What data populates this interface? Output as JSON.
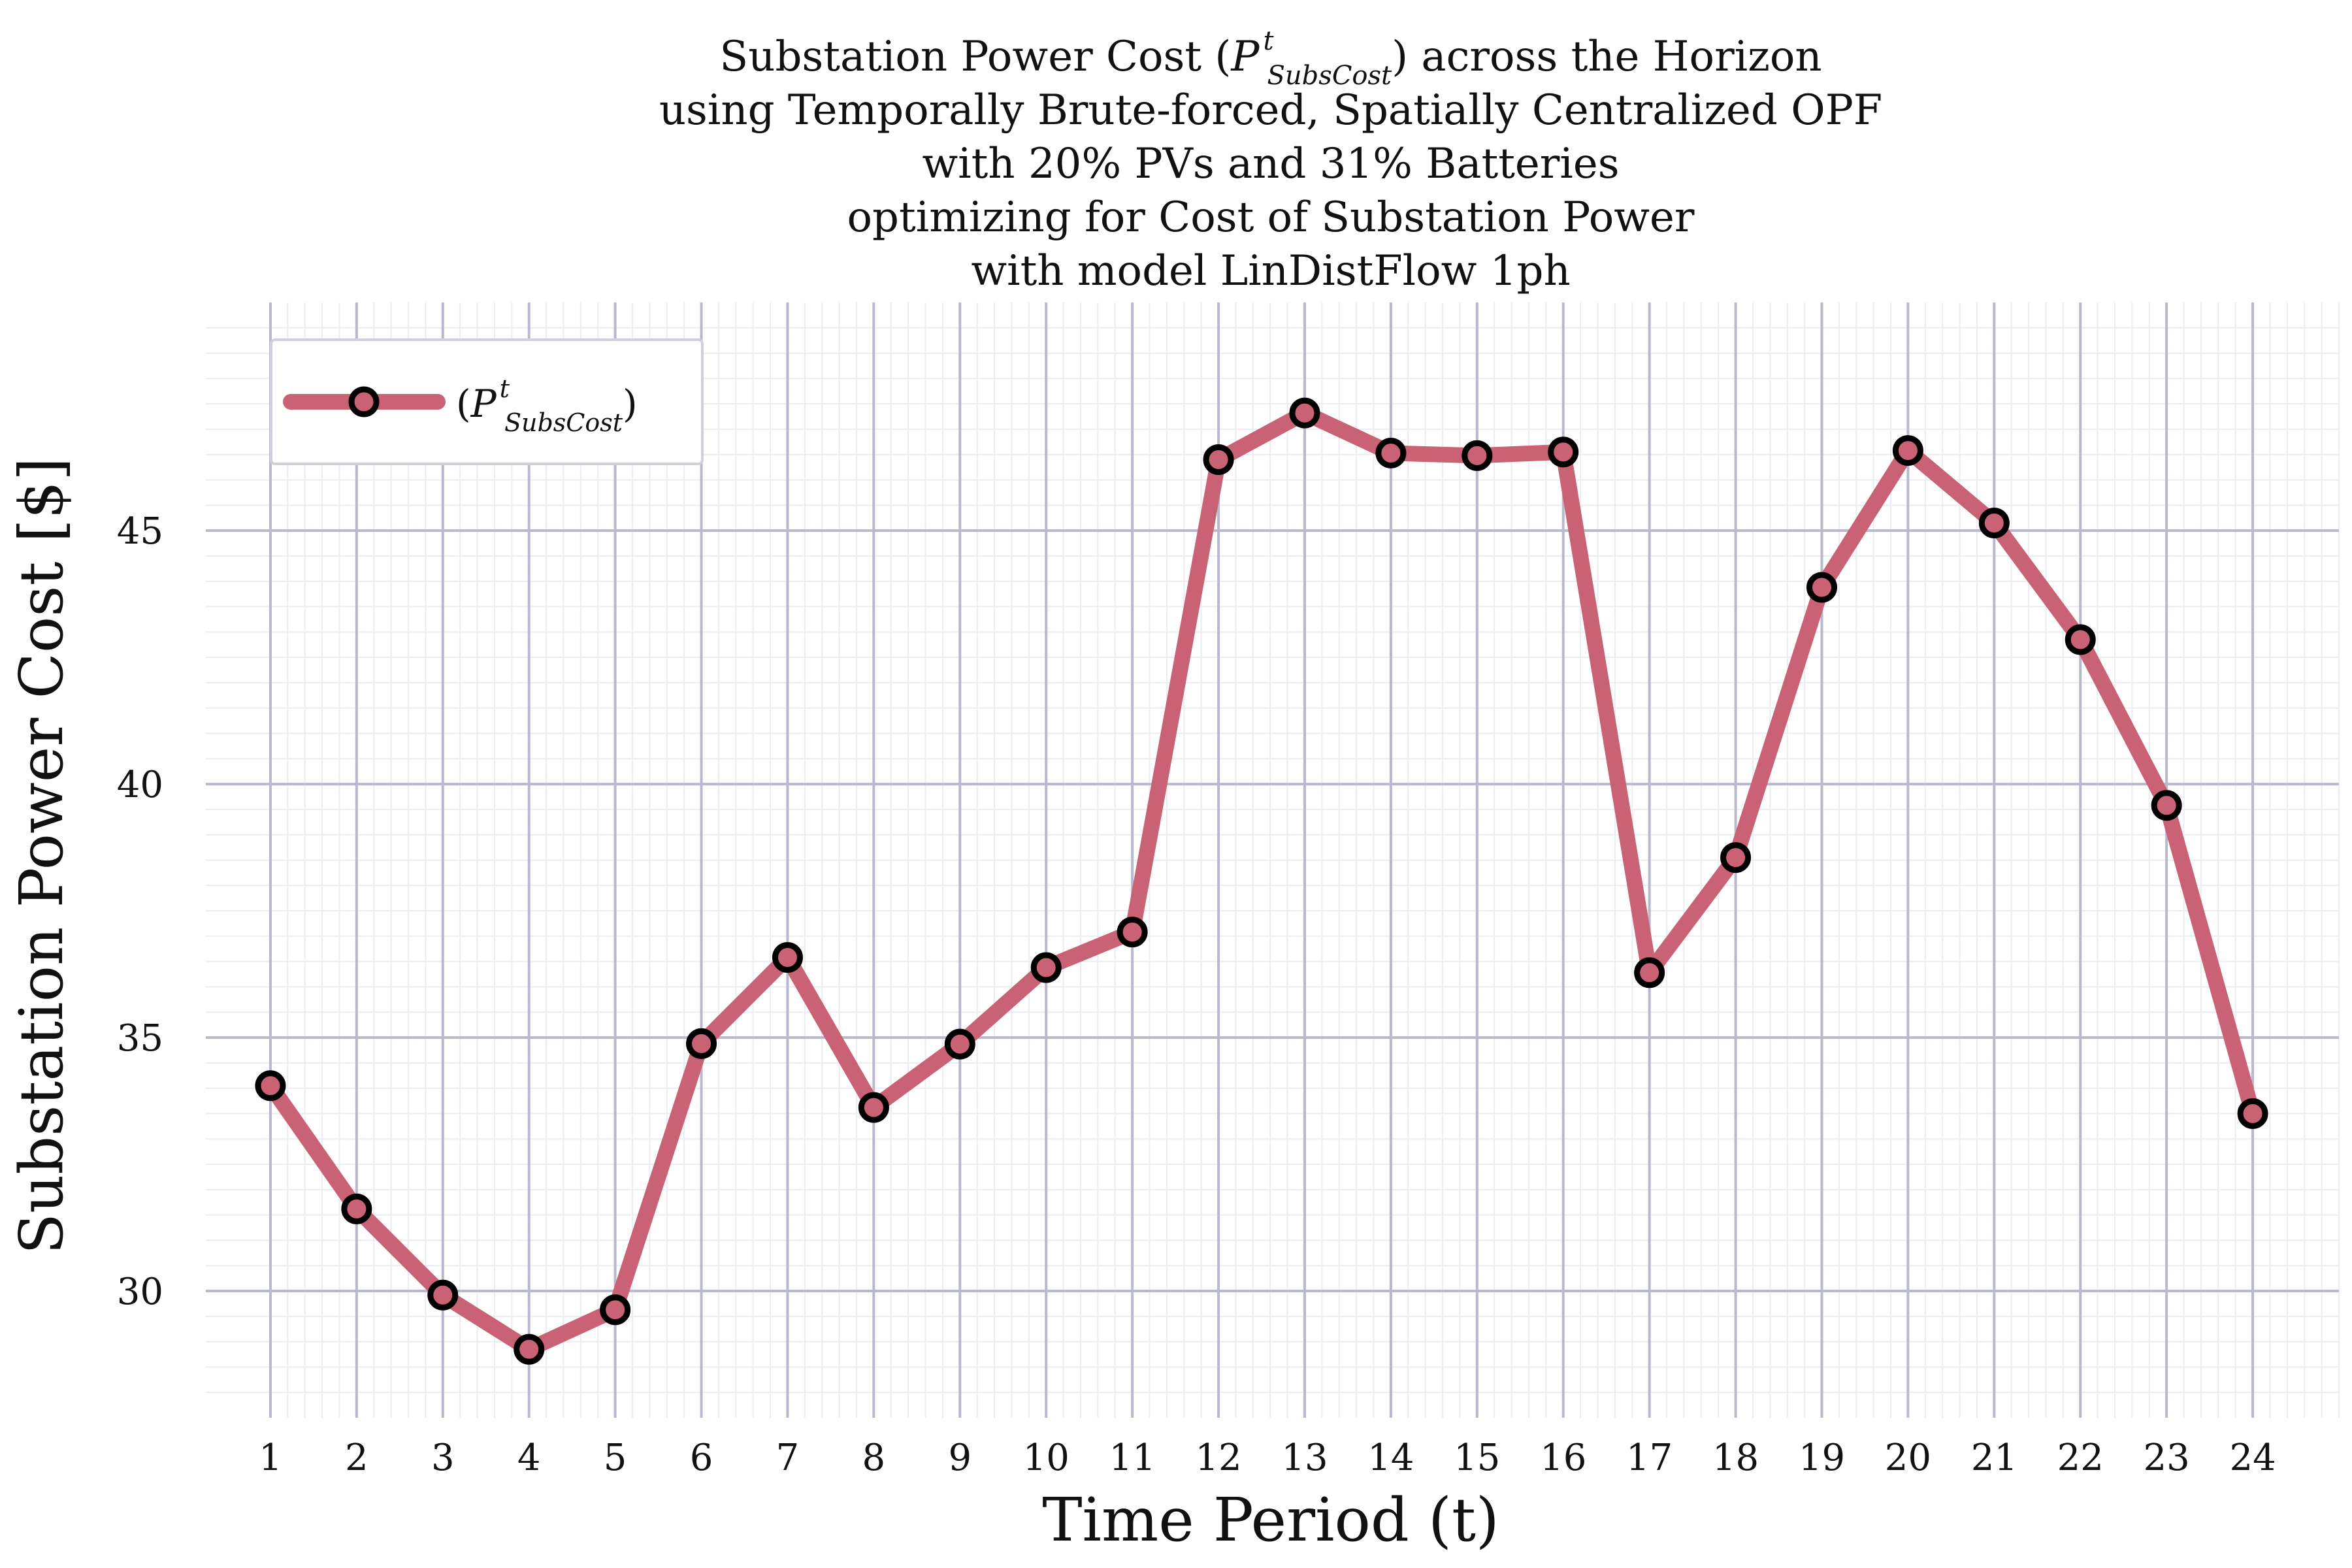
{
  "chart_data": {
    "type": "line",
    "title_lines": [
      "Substation Power Cost (P^t_SubsCost) across the Horizon",
      "using Temporally Brute-forced, Spatially Centralized OPF",
      "with 20% PVs and 31% Batteries",
      "optimizing for Cost of Substation Power",
      "with model LinDistFlow 1ph"
    ],
    "title_math": {
      "before": "Substation Power Cost (",
      "symbol": "P",
      "superscript": "t",
      "subscript": "SubsCost",
      "after": ") across the Horizon"
    },
    "xlabel": "Time Period (t)",
    "ylabel": "Substation Power Cost [$]",
    "x": [
      1,
      2,
      3,
      4,
      5,
      6,
      7,
      8,
      9,
      10,
      11,
      12,
      13,
      14,
      15,
      16,
      17,
      18,
      19,
      20,
      21,
      22,
      23,
      24
    ],
    "x_tick_labels": [
      "1",
      "2",
      "3",
      "4",
      "5",
      "6",
      "7",
      "8",
      "9",
      "10",
      "11",
      "12",
      "13",
      "14",
      "15",
      "16",
      "17",
      "18",
      "19",
      "20",
      "21",
      "22",
      "23",
      "24"
    ],
    "series": [
      {
        "name": "(P^t_SubsCost)",
        "legend_math": {
          "symbol": "P",
          "superscript": "t",
          "subscript": "SubsCost"
        },
        "values": [
          34.05,
          31.62,
          29.92,
          28.85,
          29.63,
          34.88,
          36.58,
          33.62,
          34.87,
          36.38,
          37.08,
          46.4,
          47.32,
          46.53,
          46.48,
          46.55,
          36.28,
          38.55,
          43.88,
          46.58,
          45.15,
          42.85,
          39.58,
          33.5
        ]
      }
    ],
    "xlim": [
      0.25,
      25
    ],
    "ylim": [
      27.5,
      49.5
    ],
    "y_ticks": [
      30,
      35,
      40,
      45
    ],
    "y_tick_labels": [
      "30",
      "35",
      "40",
      "45"
    ],
    "grid": true,
    "legend_position": "top-left",
    "colors": {
      "line": "#c96274",
      "marker_edge": "#000000",
      "major_grid": "#b9b9cd",
      "minor_grid": "#ececf2"
    }
  }
}
